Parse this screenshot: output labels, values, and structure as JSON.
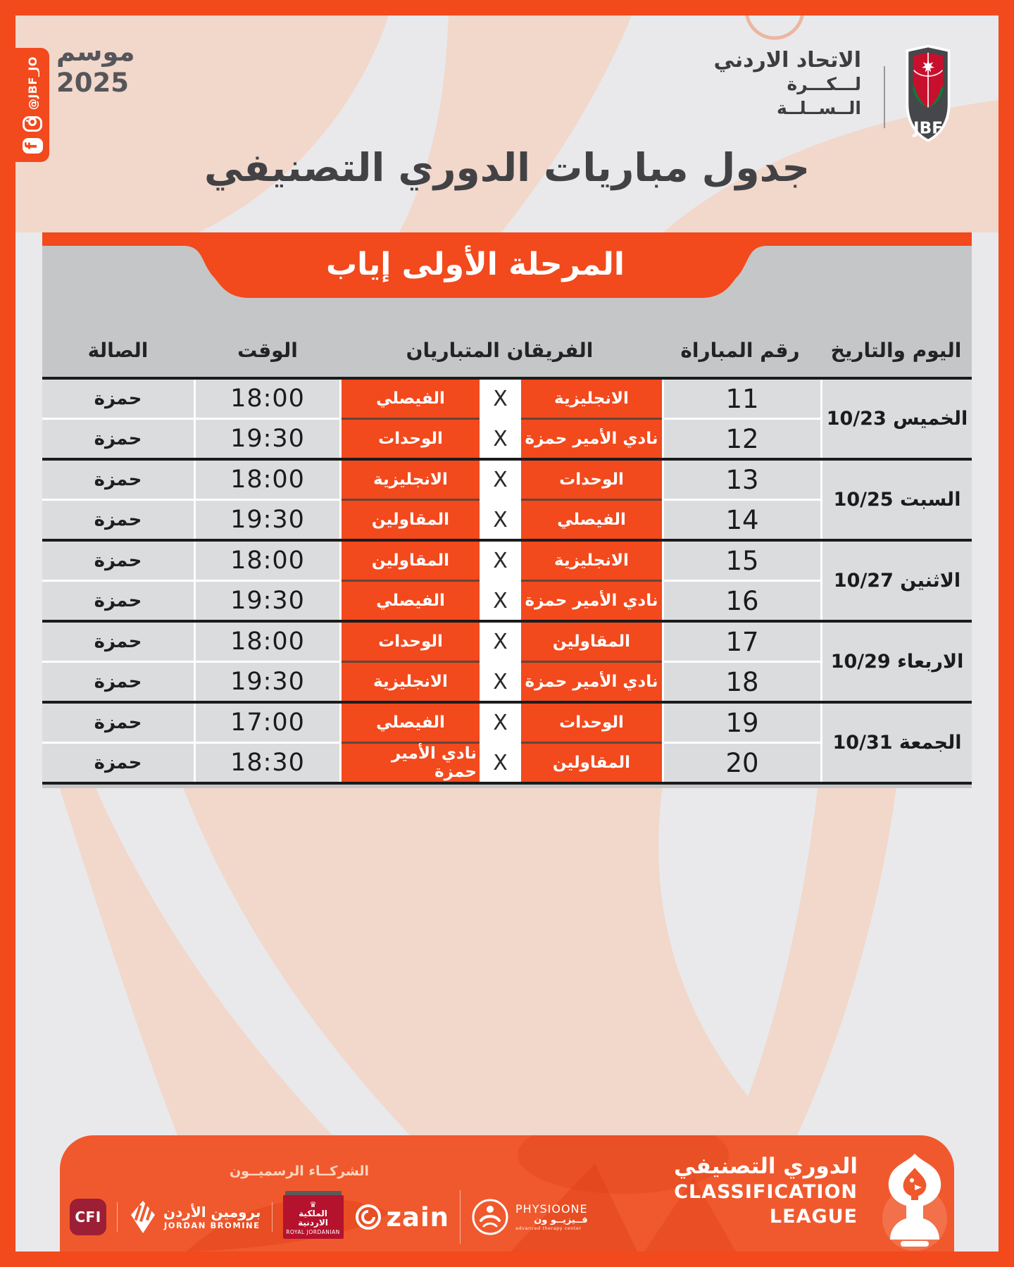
{
  "page": {
    "title": "جدول مباريات الدوري التصنيفي"
  },
  "season": {
    "label": "موسم",
    "year": "2025"
  },
  "social": {
    "handle": "@JBF_JO",
    "icons": [
      "facebook-icon",
      "instagram-icon"
    ]
  },
  "federation": {
    "line1": "الاتحاد الاردني",
    "line2": "لـــكـــرة",
    "line3": "الــســلــة",
    "abbr": "JBF"
  },
  "stage": {
    "banner": "المرحلة الأولى إياب"
  },
  "table": {
    "headers": {
      "day_date": "اليوم والتاريخ",
      "match_no": "رقم المباراة",
      "teams": "الفريقان المتباريان",
      "time": "الوقت",
      "hall": "الصالة"
    },
    "vs_symbol": "X",
    "groups": [
      {
        "day_date": "الخميس 10/23",
        "matches": [
          {
            "no": "11",
            "team_right": "الانجليزية",
            "team_left": "الفيصلي",
            "time": "18:00",
            "hall": "حمزة"
          },
          {
            "no": "12",
            "team_right": "نادي الأمير حمزة",
            "team_left": "الوحدات",
            "time": "19:30",
            "hall": "حمزة"
          }
        ]
      },
      {
        "day_date": "السبت 10/25",
        "matches": [
          {
            "no": "13",
            "team_right": "الوحدات",
            "team_left": "الانجليزية",
            "time": "18:00",
            "hall": "حمزة"
          },
          {
            "no": "14",
            "team_right": "الفيصلي",
            "team_left": "المقاولين",
            "time": "19:30",
            "hall": "حمزة"
          }
        ]
      },
      {
        "day_date": "الاثنين 10/27",
        "matches": [
          {
            "no": "15",
            "team_right": "الانجليزية",
            "team_left": "المقاولين",
            "time": "18:00",
            "hall": "حمزة"
          },
          {
            "no": "16",
            "team_right": "نادي الأمير حمزة",
            "team_left": "الفيصلي",
            "time": "19:30",
            "hall": "حمزة"
          }
        ]
      },
      {
        "day_date": "الاربعاء 10/29",
        "matches": [
          {
            "no": "17",
            "team_right": "المقاولين",
            "team_left": "الوحدات",
            "time": "18:00",
            "hall": "حمزة"
          },
          {
            "no": "18",
            "team_right": "نادي الأمير حمزة",
            "team_left": "الانجليزية",
            "time": "19:30",
            "hall": "حمزة"
          }
        ]
      },
      {
        "day_date": "الجمعة 10/31",
        "matches": [
          {
            "no": "19",
            "team_right": "الوحدات",
            "team_left": "الفيصلي",
            "time": "17:00",
            "hall": "حمزة"
          },
          {
            "no": "20",
            "team_right": "المقاولين",
            "team_left": "نادي الأمير حمزة",
            "time": "18:30",
            "hall": "حمزة"
          }
        ]
      }
    ]
  },
  "footer": {
    "partners_label": "الشركــاء الرسميــون",
    "sponsors": {
      "cfi": {
        "label": "CFI"
      },
      "bromine": {
        "name_ar": "برومين الأردن",
        "name_en": "JORDAN BROMINE"
      },
      "royal_jordanian": {
        "crown": "♛",
        "name_ar": "الملكية الاردنية",
        "name_en": "ROYAL JORDANIAN"
      },
      "zain": {
        "label": "zain"
      },
      "physio": {
        "name_en": "PHYSIOONE",
        "name_ar": "فــيزيــو ون",
        "tagline": "advanced therapy center"
      }
    },
    "league": {
      "name_ar": "الدوري التصنيفي",
      "name_en_line1": "CLASSIFICATION",
      "name_en_line2": "LEAGUE"
    }
  },
  "colors": {
    "orange": "#F2491D",
    "footer_orange": "#F0592D",
    "panel_gray": "#C5C6C8",
    "cell_gray": "#DBDCDE",
    "dark_line": "#1B1B1B",
    "pink": "#F2D7CB",
    "background": "#E9E9EB",
    "title_text": "#424245"
  }
}
